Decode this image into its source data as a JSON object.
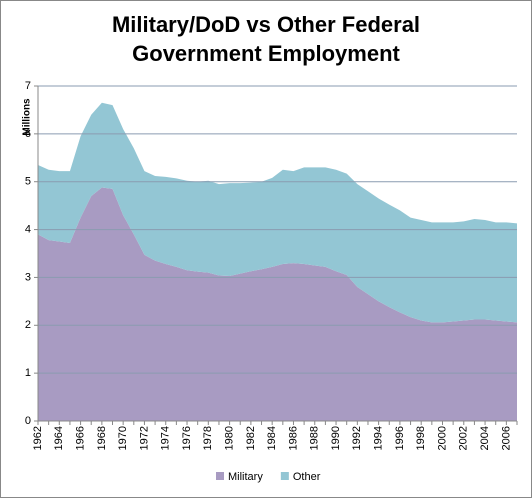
{
  "chart_data": {
    "type": "area",
    "stacked": true,
    "title": "Military/DoD vs Other Federal Government Employment",
    "y_label": "Millions",
    "categories": [
      "1962",
      null,
      "1964",
      null,
      "1966",
      null,
      "1968",
      null,
      "1970",
      null,
      "1972",
      null,
      "1974",
      null,
      "1976",
      null,
      "1978",
      null,
      "1980",
      null,
      "1982",
      null,
      "1984",
      null,
      "1986",
      null,
      "1988",
      null,
      "1990",
      null,
      "1992",
      null,
      "1994",
      null,
      "1996",
      null,
      "1998",
      null,
      "2000",
      null,
      "2002",
      null,
      "2004",
      null,
      "2006",
      null
    ],
    "series": [
      {
        "name": "Military",
        "color": "#a89bc2",
        "values": [
          3.9,
          3.78,
          3.75,
          3.72,
          4.25,
          4.7,
          4.88,
          4.85,
          4.3,
          3.9,
          3.47,
          3.35,
          3.28,
          3.22,
          3.15,
          3.12,
          3.1,
          3.04,
          3.03,
          3.08,
          3.13,
          3.17,
          3.22,
          3.28,
          3.3,
          3.28,
          3.25,
          3.22,
          3.13,
          3.05,
          2.8,
          2.65,
          2.5,
          2.38,
          2.27,
          2.17,
          2.1,
          2.06,
          2.06,
          2.08,
          2.1,
          2.12,
          2.12,
          2.1,
          2.08,
          2.06
        ]
      },
      {
        "name": "Other",
        "color": "#93c6d4",
        "values": [
          1.45,
          1.47,
          1.47,
          1.5,
          1.7,
          1.7,
          1.77,
          1.75,
          1.8,
          1.8,
          1.75,
          1.77,
          1.82,
          1.85,
          1.87,
          1.88,
          1.92,
          1.91,
          1.94,
          1.89,
          1.85,
          1.83,
          1.86,
          1.97,
          1.92,
          2.02,
          2.05,
          2.08,
          2.12,
          2.12,
          2.15,
          2.15,
          2.15,
          2.14,
          2.13,
          2.08,
          2.1,
          2.09,
          2.09,
          2.07,
          2.07,
          2.1,
          2.08,
          2.05,
          2.07,
          2.07
        ]
      }
    ],
    "ylim": [
      0,
      7
    ],
    "yticks": [
      0,
      1,
      2,
      3,
      4,
      5,
      6,
      7
    ],
    "grid": true,
    "legend": "bottom"
  }
}
